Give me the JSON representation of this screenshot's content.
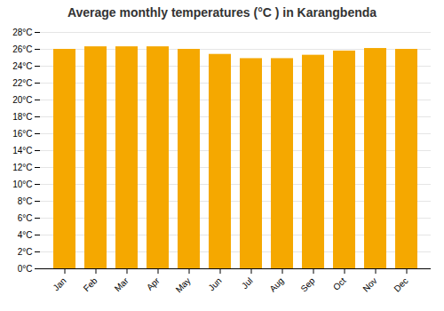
{
  "chart_data": {
    "type": "bar",
    "title": "Average monthly temperatures (°C ) in Karangbenda",
    "categories": [
      "Jan",
      "Feb",
      "Mar",
      "Apr",
      "May",
      "Jun",
      "Jul",
      "Aug",
      "Sep",
      "Oct",
      "Nov",
      "Dec"
    ],
    "values": [
      26.0,
      26.3,
      26.3,
      26.3,
      26.0,
      25.4,
      24.9,
      24.9,
      25.3,
      25.8,
      26.1,
      26.0
    ],
    "color": "#F5A800",
    "ylim": [
      0,
      28
    ],
    "yticks": [
      {
        "value": 0,
        "label": "0°C"
      },
      {
        "value": 2,
        "label": "2°C"
      },
      {
        "value": 4,
        "label": "4°C"
      },
      {
        "value": 6,
        "label": "6°C"
      },
      {
        "value": 8,
        "label": "8°C"
      },
      {
        "value": 10,
        "label": "10°C"
      },
      {
        "value": 12,
        "label": "12°C"
      },
      {
        "value": 14,
        "label": "14°C"
      },
      {
        "value": 16,
        "label": "16°C"
      },
      {
        "value": 18,
        "label": "18°C"
      },
      {
        "value": 20,
        "label": "20°C"
      },
      {
        "value": 22,
        "label": "22°C"
      },
      {
        "value": 24,
        "label": "24°C"
      },
      {
        "value": 26,
        "label": "26°C"
      },
      {
        "value": 28,
        "label": "28°C"
      }
    ],
    "grid": true
  }
}
